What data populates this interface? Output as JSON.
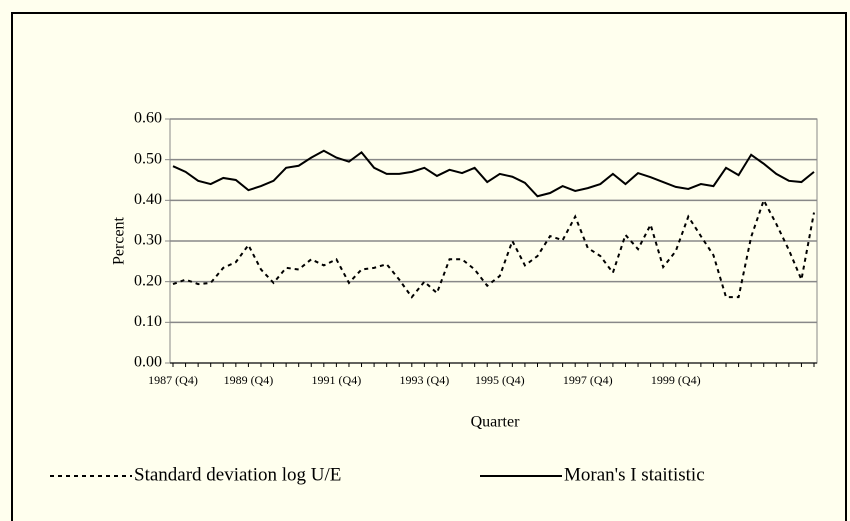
{
  "chart_data": {
    "type": "line",
    "x_label": "Quarter",
    "y_label": "Percent",
    "categories": [
      "1987 (Q4)",
      null,
      null,
      null,
      null,
      null,
      "1989 (Q4)",
      null,
      null,
      null,
      null,
      null,
      null,
      "1991 (Q4)",
      null,
      null,
      null,
      null,
      null,
      null,
      "1993 (Q4)",
      null,
      null,
      null,
      null,
      null,
      "1995 (Q4)",
      null,
      null,
      null,
      null,
      null,
      null,
      "1997 (Q4)",
      null,
      null,
      null,
      null,
      null,
      null,
      "1999 (Q4)",
      null,
      null,
      null,
      null,
      null,
      null,
      null,
      null,
      null,
      null,
      null
    ],
    "series": [
      {
        "name": "Standard deviation log U/E",
        "color": "#000000",
        "dash": "4,4",
        "values": [
          0.194,
          0.205,
          0.194,
          0.197,
          0.234,
          0.248,
          0.29,
          0.23,
          0.197,
          0.234,
          0.23,
          0.255,
          0.24,
          0.255,
          0.197,
          0.23,
          0.234,
          0.243,
          0.205,
          0.162,
          0.2,
          0.172,
          0.255,
          0.255,
          0.23,
          0.19,
          0.214,
          0.3,
          0.24,
          0.263,
          0.312,
          0.302,
          0.36,
          0.283,
          0.263,
          0.222,
          0.315,
          0.28,
          0.34,
          0.236,
          0.275,
          0.36,
          0.312,
          0.265,
          0.162,
          0.162,
          0.31,
          0.4,
          0.342,
          0.278,
          0.205,
          0.37
        ]
      },
      {
        "name": "Moran's I staitistic",
        "color": "#000000",
        "dash": "none",
        "values": [
          0.484,
          0.47,
          0.448,
          0.44,
          0.455,
          0.45,
          0.425,
          0.435,
          0.448,
          0.48,
          0.485,
          0.505,
          0.522,
          0.505,
          0.495,
          0.518,
          0.48,
          0.465,
          0.465,
          0.47,
          0.48,
          0.46,
          0.475,
          0.467,
          0.48,
          0.445,
          0.465,
          0.458,
          0.443,
          0.41,
          0.418,
          0.435,
          0.423,
          0.43,
          0.44,
          0.465,
          0.44,
          0.467,
          0.457,
          0.445,
          0.433,
          0.428,
          0.44,
          0.435,
          0.48,
          0.462,
          0.512,
          0.49,
          0.465,
          0.448,
          0.445,
          0.47
        ]
      }
    ],
    "ylim": [
      0,
      0.6
    ],
    "yticks": [
      {
        "value": 0,
        "label": "0.00"
      },
      {
        "value": 0.1,
        "label": "0.10"
      },
      {
        "value": 0.2,
        "label": "0.20"
      },
      {
        "value": 0.3,
        "label": "0.30"
      },
      {
        "value": 0.4,
        "label": "0.40"
      },
      {
        "value": 0.5,
        "label": "0.50"
      },
      {
        "value": 0.6,
        "label": "0.60"
      }
    ],
    "grid": true,
    "background": "#ffffee"
  }
}
